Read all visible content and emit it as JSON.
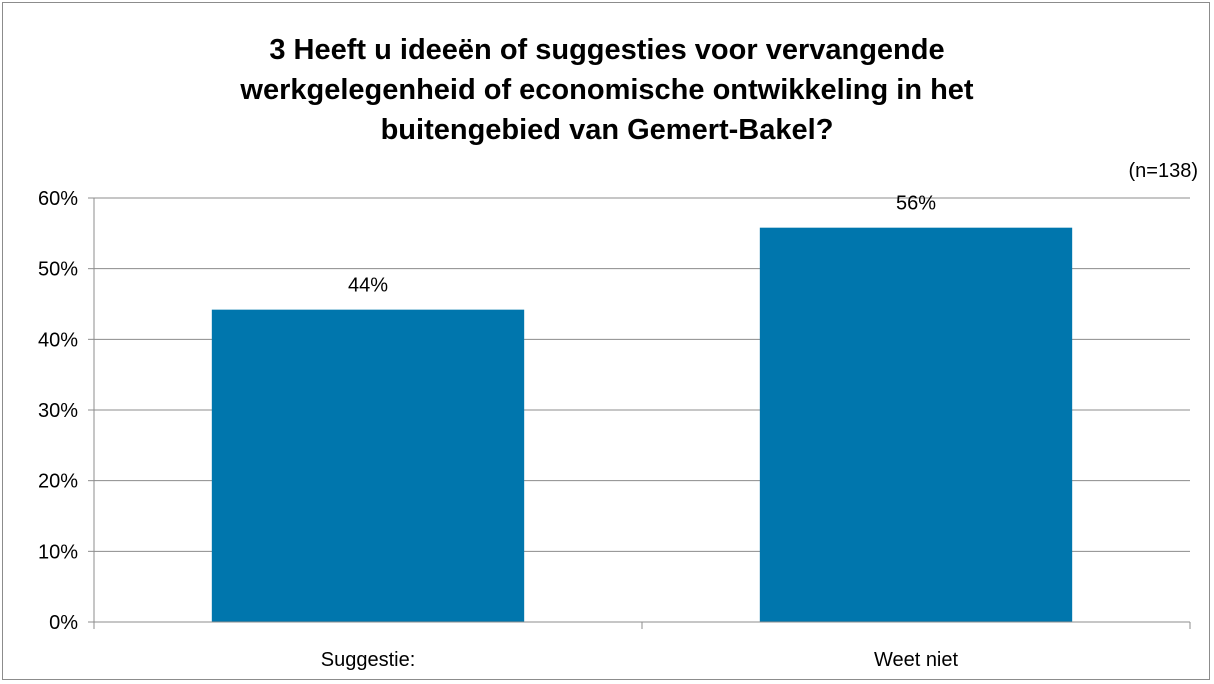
{
  "colors": {
    "bar": "#0076ad",
    "grid": "#8c8c8c"
  },
  "note": "(n=138)",
  "chart_data": {
    "type": "bar",
    "title": "3 Heeft u ideeën of suggesties voor vervangende werkgelegenheid of economische ontwikkeling in het buitengebied van Gemert-Bakel?",
    "categories": [
      "Suggestie:",
      "Weet niet"
    ],
    "values": [
      44.2,
      55.8
    ],
    "value_labels": [
      "44%",
      "56%"
    ],
    "ylim": [
      0,
      60
    ],
    "yticks": [
      0,
      10,
      20,
      30,
      40,
      50,
      60
    ],
    "ytick_labels": [
      "0%",
      "10%",
      "20%",
      "30%",
      "40%",
      "50%",
      "60%"
    ],
    "grid": true,
    "legend": "none",
    "xlabel": "",
    "ylabel": ""
  }
}
